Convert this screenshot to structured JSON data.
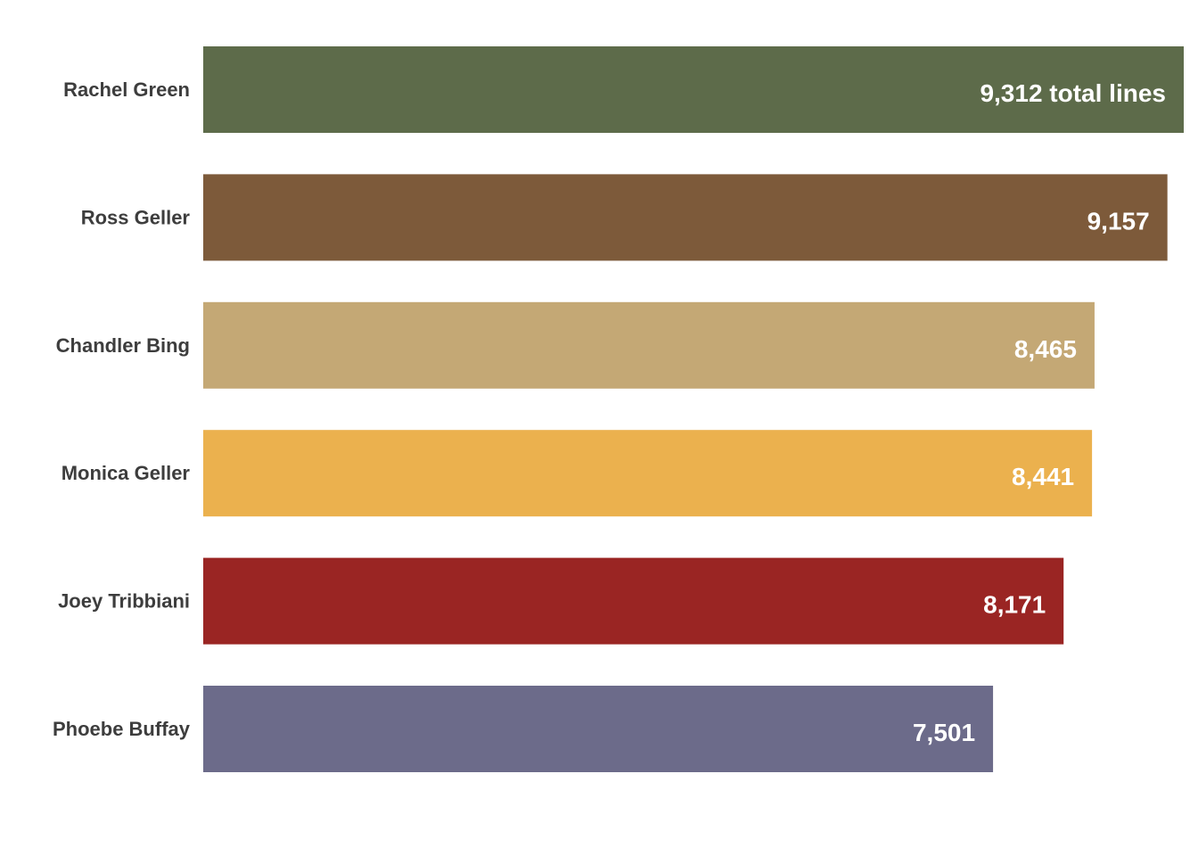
{
  "chart_data": {
    "type": "bar",
    "orientation": "horizontal",
    "categories": [
      "Rachel Green",
      "Ross Geller",
      "Chandler Bing",
      "Monica Geller",
      "Joey Tribbiani",
      "Phoebe Buffay"
    ],
    "values": [
      9312,
      9157,
      8465,
      8441,
      8171,
      7501
    ],
    "value_labels": [
      "9,312 total lines",
      "9,157",
      "8,465",
      "8,441",
      "8,171",
      "7,501"
    ],
    "colors": [
      "#5d6b4a",
      "#7d5a3a",
      "#c4a875",
      "#ebb14e",
      "#9a2523",
      "#6c6b8a"
    ],
    "title": "",
    "xlabel": "",
    "ylabel": "",
    "xlim": [
      0,
      9312
    ],
    "grid": false,
    "legend": "none"
  }
}
